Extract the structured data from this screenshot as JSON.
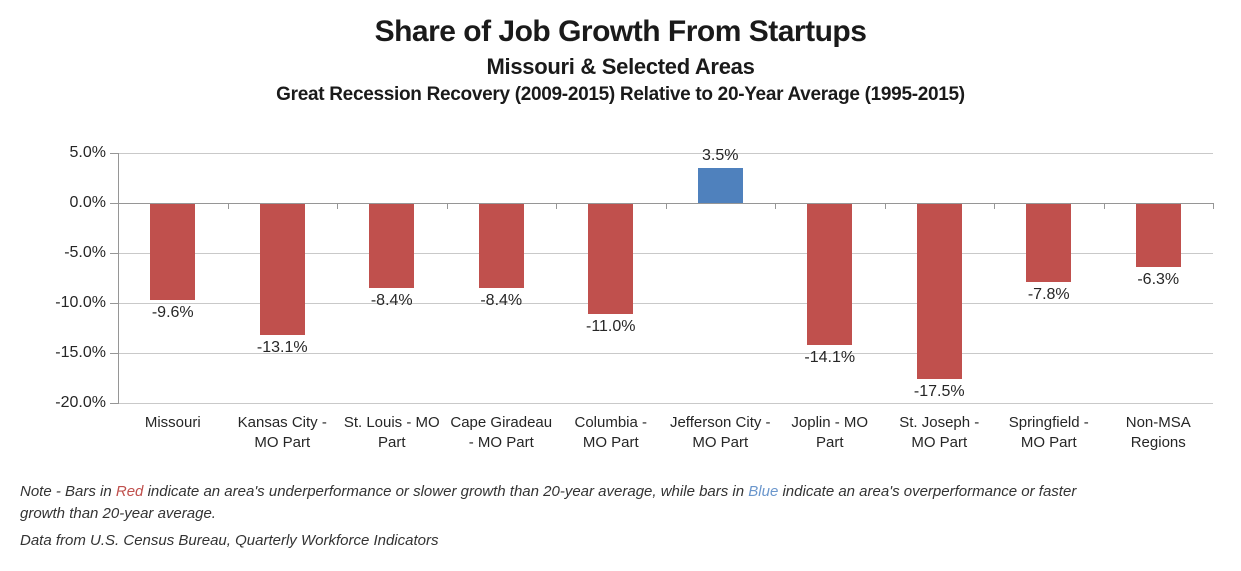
{
  "chart_data": {
    "type": "bar",
    "title": "Share of Job Growth From Startups",
    "subtitle": "Missouri & Selected Areas",
    "subtitle2": "Great Recession Recovery (2009-2015) Relative to 20-Year Average (1995-2015)",
    "categories": [
      "Missouri",
      "Kansas City - MO Part",
      "St. Louis - MO Part",
      "Cape Giradeau - MO Part",
      "Columbia - MO Part",
      "Jefferson City - MO Part",
      "Joplin - MO Part",
      "St. Joseph - MO Part",
      "Springfield - MO Part",
      "Non-MSA Regions"
    ],
    "category_labels": [
      "Missouri",
      "Kansas City -\nMO Part",
      "St. Louis - MO\nPart",
      "Cape Giradeau\n- MO Part",
      "Columbia -\nMO Part",
      "Jefferson City -\nMO Part",
      "Joplin - MO\nPart",
      "St. Joseph -\nMO Part",
      "Springfield -\nMO Part",
      "Non-MSA\nRegions"
    ],
    "values": [
      -9.6,
      -13.1,
      -8.4,
      -8.4,
      -11.0,
      3.5,
      -14.1,
      -17.5,
      -7.8,
      -6.3
    ],
    "data_labels": [
      "-9.6%",
      "-13.1%",
      "-8.4%",
      "-8.4%",
      "-11.0%",
      "3.5%",
      "-14.1%",
      "-17.5%",
      "-7.8%",
      "-6.3%"
    ],
    "y_ticks": [
      "5.0%",
      "0.0%",
      "-5.0%",
      "-10.0%",
      "-15.0%",
      "-20.0%"
    ],
    "ylim": [
      -20,
      5
    ],
    "xlabel": "",
    "ylabel": "",
    "grid": true,
    "legend": "none",
    "colors": {
      "negative_bar": "#C0504D",
      "positive_bar": "#4F81BD",
      "gridline": "#C9C9C9",
      "axis": "#969696"
    }
  },
  "note": {
    "prefix": "Note - Bars in ",
    "red_word": "Red",
    "middle": " indicate an area's underperformance or slower growth than 20-year average, while bars in ",
    "blue_word": "Blue",
    "suffix_line1": " indicate an area's overperformance or faster",
    "suffix_line2": "growth than 20-year average.",
    "red_color": "#C0504D",
    "blue_color": "#6A96CC",
    "source": "Data from U.S. Census Bureau, Quarterly Workforce Indicators"
  }
}
